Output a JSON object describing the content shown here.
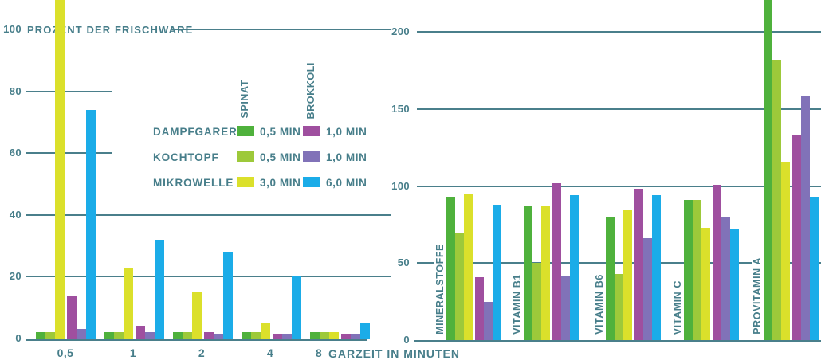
{
  "colors": {
    "text": "#477E8A",
    "grid": "#4A7F8B",
    "background": "#FFFFFF",
    "dampfgarer_spinat": "#4FB13C",
    "kochtopf_spinat": "#9DC93A",
    "mikrowelle_spinat": "#DBE02B",
    "dampfgarer_brokkoli": "#9F4F9F",
    "kochtopf_brokkoli": "#8172B8",
    "mikrowelle_brokkoli": "#1BACE8"
  },
  "legend": {
    "columns": [
      "SPINAT",
      "BROKKOLI"
    ],
    "rows": [
      {
        "method": "DAMPFGARER",
        "spinat_label": "0,5 MIN",
        "spinat_color": "dampfgarer_spinat",
        "brokkoli_label": "1,0 MIN",
        "brokkoli_color": "dampfgarer_brokkoli"
      },
      {
        "method": "KOCHTOPF",
        "spinat_label": "0,5 MIN",
        "spinat_color": "kochtopf_spinat",
        "brokkoli_label": "1,0 MIN",
        "brokkoli_color": "kochtopf_brokkoli"
      },
      {
        "method": "MIKROWELLE",
        "spinat_label": "3,0 MIN",
        "spinat_color": "mikrowelle_spinat",
        "brokkoli_label": "6,0 MIN",
        "brokkoli_color": "mikrowelle_brokkoli"
      }
    ]
  },
  "chart_data": [
    {
      "id": "retention-by-cooking-time",
      "type": "bar",
      "title": "PROZENT DER FRISCHWARE",
      "xlabel": "GARZEIT IN MINUTEN",
      "ylim": [
        0,
        110
      ],
      "yticks": [
        0,
        20,
        40,
        60,
        80,
        100
      ],
      "grid": "horizontal, partial segments",
      "legend_position": "inside upper right",
      "categories": [
        "0,5",
        "1",
        "2",
        "4",
        "8"
      ],
      "series": [
        {
          "name": "Dampfgarer Spinat 0,5 min",
          "color": "dampfgarer_spinat",
          "values": [
            2,
            2,
            2,
            2,
            2
          ]
        },
        {
          "name": "Kochtopf Spinat 0,5 min",
          "color": "kochtopf_spinat",
          "values": [
            2,
            2,
            2,
            2,
            2
          ]
        },
        {
          "name": "Mikrowelle Spinat 3,0 min",
          "color": "mikrowelle_spinat",
          "values": [
            110,
            23,
            15,
            5,
            2
          ],
          "note": "first bar clipped at top edge of image"
        },
        {
          "name": "Dampfgarer Brokkoli 1,0 min",
          "color": "dampfgarer_brokkoli",
          "values": [
            14,
            4,
            2,
            1.5,
            1.5
          ]
        },
        {
          "name": "Kochtopf Brokkoli 1,0 min",
          "color": "kochtopf_brokkoli",
          "values": [
            3,
            2,
            1.5,
            1.5,
            1.5
          ]
        },
        {
          "name": "Mikrowelle Brokkoli 6,0 min",
          "color": "mikrowelle_brokkoli",
          "values": [
            74,
            32,
            28,
            20,
            5
          ]
        }
      ]
    },
    {
      "id": "retention-by-nutrient",
      "type": "bar",
      "title": "",
      "xlabel": "",
      "ylim": [
        0,
        220
      ],
      "yticks": [
        0,
        50,
        100,
        150,
        200
      ],
      "grid": "horizontal, full width",
      "categories": [
        "MINERALSTOFFE",
        "VITAMIN B1",
        "VITAMIN B6",
        "VITAMIN C",
        "PROVITAMIN A"
      ],
      "series": [
        {
          "name": "Dampfgarer Spinat 0,5 min",
          "color": "dampfgarer_spinat",
          "values": [
            93,
            87,
            80,
            91,
            222
          ],
          "note": "last bar clipped at top edge of image"
        },
        {
          "name": "Kochtopf Spinat 0,5 min",
          "color": "kochtopf_spinat",
          "values": [
            70,
            50,
            43,
            91,
            182
          ]
        },
        {
          "name": "Mikrowelle Spinat 3,0 min",
          "color": "mikrowelle_spinat",
          "values": [
            95,
            87,
            84,
            73,
            116
          ]
        },
        {
          "name": "Dampfgarer Brokkoli 1,0 min",
          "color": "dampfgarer_brokkoli",
          "values": [
            41,
            102,
            98,
            101,
            133
          ]
        },
        {
          "name": "Kochtopf Brokkoli 1,0 min",
          "color": "kochtopf_brokkoli",
          "values": [
            25,
            42,
            66,
            80,
            158
          ]
        },
        {
          "name": "Mikrowelle Brokkoli 6,0 min",
          "color": "mikrowelle_brokkoli",
          "values": [
            88,
            94,
            94,
            72,
            93
          ]
        }
      ]
    }
  ]
}
